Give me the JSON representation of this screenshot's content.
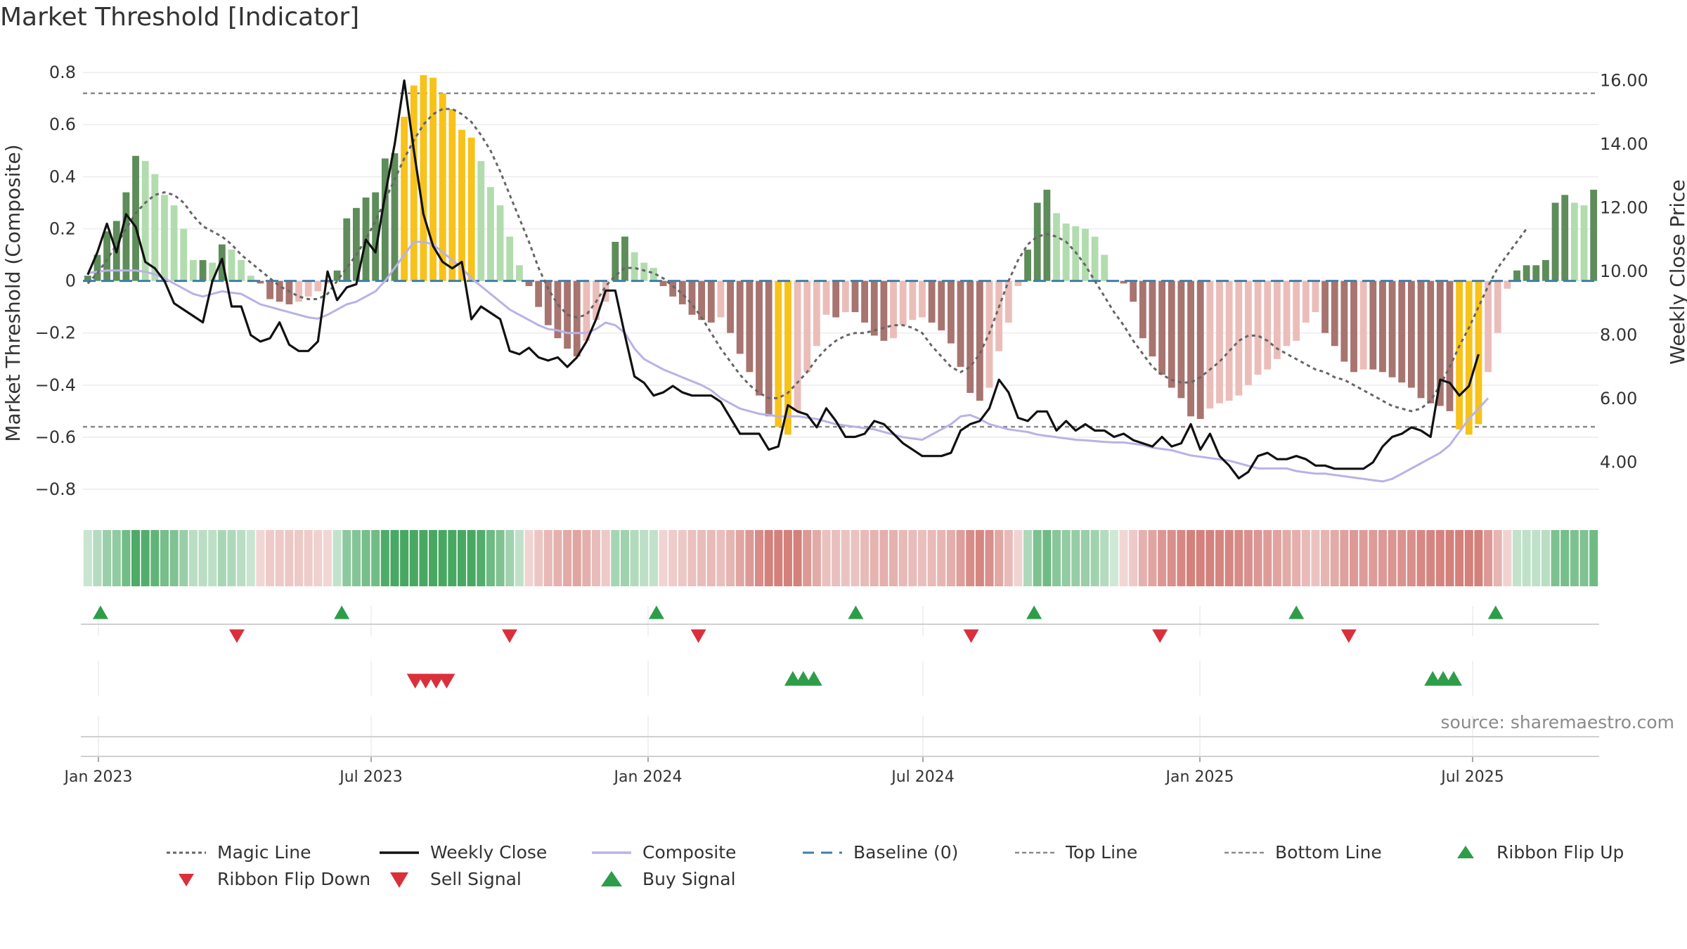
{
  "title": "Market Threshold [Indicator]",
  "source": "source: sharemaestro.com",
  "colors": {
    "strong_green": "#5e8c5a",
    "light_green": "#b2dcae",
    "strong_red": "#a77470",
    "light_red": "#ebbdb9",
    "gold": "#f7c21a",
    "magic_line": "#666666",
    "weekly_close": "#111111",
    "composite": "#b9b2e6",
    "baseline": "#3f7fa8",
    "threshold_line": "#8a8a8a",
    "buy": "#2e9d4a",
    "sell": "#d9303c"
  },
  "chart_data": {
    "type": "bar",
    "title": "Market Threshold [Indicator]",
    "ylabel": "Market Threshold (Composite)",
    "y2label": "Weekly Close Price",
    "ylim": [
      -0.87,
      0.83
    ],
    "y2lim": [
      2.58,
      16.5
    ],
    "yticks": [
      0.8,
      0.6,
      0.4,
      0.2,
      0,
      -0.2,
      -0.4,
      -0.6,
      -0.8
    ],
    "ytick_labels": [
      "0.8",
      "0.6",
      "0.4",
      "0.2",
      "0",
      "−0.2",
      "−0.4",
      "−0.6",
      "−0.8"
    ],
    "y2ticks": [
      16,
      14,
      12,
      10,
      8,
      6,
      4
    ],
    "y2tick_labels": [
      "16.00",
      "14.00",
      "12.00",
      "10.00",
      "8.00",
      "6.00",
      "4.00"
    ],
    "xticks": [
      "Jan 2023",
      "Jul 2023",
      "Jan 2024",
      "Jul 2024",
      "Jan 2025",
      "Jul 2025"
    ],
    "top_line": 0.72,
    "bottom_line": -0.56,
    "grid": true,
    "legend_position": "bottom",
    "legend": [
      "Magic Line",
      "Weekly Close",
      "Composite",
      "Baseline (0)",
      "Top Line",
      "Bottom Line",
      "Ribbon Flip Up",
      "Ribbon Flip Down",
      "Sell Signal",
      "Buy Signal"
    ],
    "bars": [
      0.02,
      0.1,
      0.19,
      0.23,
      0.34,
      0.48,
      0.46,
      0.41,
      0.33,
      0.29,
      0.2,
      0.08,
      0.08,
      0.07,
      0.14,
      0.12,
      0.08,
      0.02,
      -0.01,
      -0.07,
      -0.08,
      -0.09,
      -0.08,
      -0.06,
      -0.04,
      -0.01,
      0.04,
      0.24,
      0.28,
      0.32,
      0.34,
      0.47,
      0.49,
      0.63,
      0.75,
      0.79,
      0.78,
      0.72,
      0.66,
      0.58,
      0.55,
      0.46,
      0.36,
      0.29,
      0.17,
      0.06,
      -0.02,
      -0.1,
      -0.17,
      -0.22,
      -0.26,
      -0.29,
      -0.23,
      -0.15,
      -0.08,
      0.15,
      0.17,
      0.11,
      0.07,
      0.05,
      -0.02,
      -0.06,
      -0.09,
      -0.13,
      -0.15,
      -0.16,
      -0.14,
      -0.2,
      -0.28,
      -0.35,
      -0.44,
      -0.52,
      -0.56,
      -0.59,
      -0.5,
      -0.35,
      -0.25,
      -0.13,
      -0.14,
      -0.12,
      -0.12,
      -0.16,
      -0.21,
      -0.23,
      -0.22,
      -0.17,
      -0.15,
      -0.14,
      -0.16,
      -0.19,
      -0.24,
      -0.33,
      -0.43,
      -0.46,
      -0.41,
      -0.27,
      -0.16,
      -0.02,
      0.12,
      0.3,
      0.35,
      0.26,
      0.22,
      0.21,
      0.2,
      0.17,
      0.1,
      0.0,
      -0.01,
      -0.08,
      -0.22,
      -0.29,
      -0.36,
      -0.41,
      -0.45,
      -0.52,
      -0.53,
      -0.49,
      -0.47,
      -0.46,
      -0.44,
      -0.4,
      -0.36,
      -0.34,
      -0.3,
      -0.25,
      -0.23,
      -0.16,
      -0.12,
      -0.2,
      -0.25,
      -0.31,
      -0.35,
      -0.34,
      -0.34,
      -0.35,
      -0.37,
      -0.39,
      -0.41,
      -0.45,
      -0.47,
      -0.48,
      -0.5,
      -0.57,
      -0.59,
      -0.55,
      -0.35,
      -0.2,
      -0.03,
      0.04,
      0.06,
      0.06,
      0.08,
      0.3,
      0.33,
      0.3,
      0.29,
      0.35
    ],
    "weekly_close": [
      9.9,
      10.6,
      11.5,
      10.6,
      11.8,
      11.4,
      10.3,
      10.1,
      9.7,
      9.0,
      8.8,
      8.6,
      8.4,
      9.7,
      10.4,
      8.9,
      8.9,
      8.0,
      7.8,
      7.9,
      8.4,
      7.7,
      7.5,
      7.5,
      7.8,
      10.0,
      9.1,
      9.5,
      9.6,
      11.0,
      10.6,
      12.4,
      14.0,
      16.0,
      13.8,
      11.8,
      10.8,
      10.3,
      10.1,
      10.3,
      8.5,
      8.9,
      8.7,
      8.5,
      7.5,
      7.4,
      7.6,
      7.3,
      7.2,
      7.3,
      7.0,
      7.3,
      7.8,
      8.5,
      9.4,
      9.4,
      8.0,
      6.7,
      6.5,
      6.1,
      6.2,
      6.4,
      6.2,
      6.1,
      6.1,
      6.1,
      5.9,
      5.4,
      4.9,
      4.9,
      4.9,
      4.4,
      4.5,
      5.8,
      5.6,
      5.5,
      5.1,
      5.7,
      5.3,
      4.8,
      4.8,
      4.9,
      5.3,
      5.2,
      4.9,
      4.6,
      4.4,
      4.2,
      4.2,
      4.2,
      4.3,
      5.0,
      5.2,
      5.3,
      5.7,
      6.6,
      6.2,
      5.4,
      5.3,
      5.6,
      5.6,
      5.0,
      5.3,
      5.0,
      5.2,
      5.0,
      5.0,
      4.8,
      4.9,
      4.7,
      4.6,
      4.5,
      4.8,
      4.5,
      4.6,
      5.2,
      4.4,
      4.9,
      4.2,
      3.9,
      3.5,
      3.7,
      4.2,
      4.3,
      4.1,
      4.1,
      4.2,
      4.1,
      3.9,
      3.9,
      3.8,
      3.8,
      3.8,
      3.8,
      4.0,
      4.5,
      4.8,
      4.9,
      5.1,
      5.0,
      4.8,
      6.6,
      6.5,
      6.1,
      6.4,
      7.4
    ],
    "composite": [
      0.03,
      0.035,
      0.04,
      0.04,
      0.04,
      0.04,
      0.035,
      0.025,
      0.01,
      -0.01,
      -0.03,
      -0.05,
      -0.06,
      -0.05,
      -0.04,
      -0.045,
      -0.05,
      -0.07,
      -0.09,
      -0.1,
      -0.11,
      -0.12,
      -0.13,
      -0.14,
      -0.145,
      -0.13,
      -0.11,
      -0.09,
      -0.08,
      -0.06,
      -0.04,
      0.0,
      0.05,
      0.1,
      0.15,
      0.15,
      0.14,
      0.11,
      0.08,
      0.05,
      0.01,
      -0.02,
      -0.05,
      -0.08,
      -0.11,
      -0.13,
      -0.15,
      -0.17,
      -0.185,
      -0.19,
      -0.2,
      -0.2,
      -0.2,
      -0.185,
      -0.16,
      -0.17,
      -0.2,
      -0.26,
      -0.3,
      -0.32,
      -0.34,
      -0.355,
      -0.37,
      -0.385,
      -0.4,
      -0.42,
      -0.45,
      -0.47,
      -0.49,
      -0.5,
      -0.51,
      -0.515,
      -0.52,
      -0.52,
      -0.52,
      -0.525,
      -0.53,
      -0.54,
      -0.55,
      -0.555,
      -0.56,
      -0.565,
      -0.57,
      -0.58,
      -0.59,
      -0.6,
      -0.605,
      -0.61,
      -0.59,
      -0.57,
      -0.55,
      -0.52,
      -0.515,
      -0.53,
      -0.55,
      -0.56,
      -0.57,
      -0.575,
      -0.58,
      -0.59,
      -0.595,
      -0.6,
      -0.605,
      -0.61,
      -0.612,
      -0.615,
      -0.618,
      -0.62,
      -0.62,
      -0.625,
      -0.63,
      -0.64,
      -0.645,
      -0.65,
      -0.66,
      -0.67,
      -0.675,
      -0.68,
      -0.685,
      -0.69,
      -0.7,
      -0.71,
      -0.72,
      -0.72,
      -0.72,
      -0.72,
      -0.73,
      -0.735,
      -0.74,
      -0.74,
      -0.745,
      -0.75,
      -0.755,
      -0.76,
      -0.765,
      -0.77,
      -0.76,
      -0.74,
      -0.72,
      -0.7,
      -0.68,
      -0.66,
      -0.63,
      -0.58,
      -0.53,
      -0.49,
      -0.45
    ],
    "magic_line": [
      -0.01,
      0.03,
      0.08,
      0.14,
      0.2,
      0.26,
      0.3,
      0.33,
      0.34,
      0.33,
      0.3,
      0.25,
      0.21,
      0.19,
      0.17,
      0.14,
      0.1,
      0.07,
      0.04,
      0.01,
      -0.02,
      -0.04,
      -0.06,
      -0.07,
      -0.07,
      -0.05,
      0.0,
      0.05,
      0.1,
      0.16,
      0.23,
      0.31,
      0.39,
      0.47,
      0.54,
      0.6,
      0.64,
      0.66,
      0.66,
      0.64,
      0.61,
      0.56,
      0.5,
      0.42,
      0.33,
      0.24,
      0.15,
      0.05,
      -0.03,
      -0.09,
      -0.13,
      -0.14,
      -0.13,
      -0.08,
      -0.02,
      0.02,
      0.05,
      0.05,
      0.04,
      0.03,
      0.01,
      -0.02,
      -0.05,
      -0.09,
      -0.14,
      -0.2,
      -0.26,
      -0.31,
      -0.36,
      -0.4,
      -0.43,
      -0.45,
      -0.45,
      -0.43,
      -0.39,
      -0.35,
      -0.3,
      -0.26,
      -0.23,
      -0.21,
      -0.2,
      -0.2,
      -0.19,
      -0.18,
      -0.17,
      -0.17,
      -0.18,
      -0.2,
      -0.25,
      -0.29,
      -0.33,
      -0.35,
      -0.33,
      -0.28,
      -0.2,
      -0.1,
      0.0,
      0.08,
      0.14,
      0.17,
      0.18,
      0.17,
      0.15,
      0.11,
      0.06,
      0.0,
      -0.06,
      -0.12,
      -0.17,
      -0.23,
      -0.28,
      -0.33,
      -0.36,
      -0.38,
      -0.39,
      -0.39,
      -0.37,
      -0.34,
      -0.31,
      -0.27,
      -0.23,
      -0.21,
      -0.21,
      -0.23,
      -0.26,
      -0.28,
      -0.3,
      -0.32,
      -0.34,
      -0.35,
      -0.37,
      -0.38,
      -0.4,
      -0.42,
      -0.44,
      -0.46,
      -0.48,
      -0.49,
      -0.5,
      -0.49,
      -0.46,
      -0.4,
      -0.33,
      -0.25,
      -0.18,
      -0.1,
      -0.02,
      0.05,
      0.1,
      0.15,
      0.2
    ],
    "ribbon_flip_up_weeks": [
      1,
      24,
      54,
      73,
      90,
      115,
      134
    ],
    "ribbon_flip_down_weeks": [
      14,
      40,
      58,
      84,
      102,
      120
    ],
    "sell_signal_weeks": [
      31,
      32,
      33,
      34
    ],
    "buy_signal_weeks": [
      67,
      68,
      69,
      128,
      129,
      130
    ]
  }
}
